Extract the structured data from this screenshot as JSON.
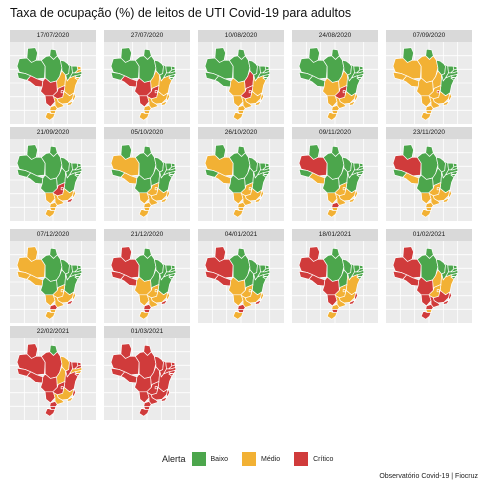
{
  "title": "Taxa de ocupação (%) de leitos de UTI Covid-19 para adultos",
  "caption": "Observatório Covid-19 | Fiocruz",
  "legend": {
    "title": "Alerta",
    "items": [
      {
        "label": "Baixo",
        "color": "#4CA64C"
      },
      {
        "label": "Médio",
        "color": "#F2B134"
      },
      {
        "label": "Crítico",
        "color": "#D03B3B"
      }
    ]
  },
  "chart_data": {
    "type": "choropleth map small multiples",
    "grid": true,
    "legend_position": "bottom",
    "alert_levels": {
      "B": "Baixo",
      "M": "Médio",
      "C": "Crítico"
    },
    "states": [
      "RR",
      "AP",
      "AM",
      "PA",
      "AC",
      "RO",
      "TO",
      "MA",
      "PI",
      "CE",
      "RN",
      "PB",
      "PE",
      "AL",
      "SE",
      "BA",
      "MT",
      "MS",
      "GO",
      "DF",
      "MG",
      "ES",
      "RJ",
      "SP",
      "PR",
      "SC",
      "RS"
    ],
    "facets": [
      {
        "date": "17/07/2020",
        "levels": [
          "B",
          "B",
          "B",
          "B",
          "B",
          "C",
          "M",
          "B",
          "B",
          "B",
          "M",
          "M",
          "B",
          "B",
          "M",
          "M",
          "C",
          "C",
          "C",
          "C",
          "M",
          "M",
          "M",
          "M",
          "M",
          "M",
          "M"
        ]
      },
      {
        "date": "27/07/2020",
        "levels": [
          "B",
          "B",
          "B",
          "B",
          "B",
          "C",
          "M",
          "B",
          "B",
          "B",
          "B",
          "B",
          "B",
          "B",
          "B",
          "M",
          "C",
          "C",
          "C",
          "C",
          "M",
          "M",
          "M",
          "M",
          "M",
          "M",
          "M"
        ]
      },
      {
        "date": "10/08/2020",
        "levels": [
          "B",
          "B",
          "B",
          "B",
          "B",
          "B",
          "C",
          "B",
          "B",
          "B",
          "B",
          "B",
          "B",
          "B",
          "B",
          "M",
          "M",
          "M",
          "C",
          "C",
          "M",
          "M",
          "M",
          "M",
          "M",
          "M",
          "M"
        ]
      },
      {
        "date": "24/08/2020",
        "levels": [
          "B",
          "B",
          "B",
          "B",
          "B",
          "B",
          "M",
          "B",
          "B",
          "B",
          "B",
          "B",
          "B",
          "B",
          "B",
          "B",
          "M",
          "M",
          "C",
          "C",
          "M",
          "M",
          "M",
          "M",
          "M",
          "M",
          "M"
        ]
      },
      {
        "date": "07/09/2020",
        "levels": [
          "B",
          "B",
          "M",
          "M",
          "M",
          "M",
          "M",
          "B",
          "B",
          "B",
          "B",
          "B",
          "B",
          "B",
          "B",
          "B",
          "M",
          "M",
          "M",
          "C",
          "M",
          "M",
          "M",
          "M",
          "M",
          "M",
          "M"
        ]
      },
      {
        "date": "21/09/2020",
        "levels": [
          "B",
          "B",
          "B",
          "B",
          "B",
          "B",
          "B",
          "B",
          "B",
          "B",
          "B",
          "B",
          "B",
          "B",
          "B",
          "B",
          "B",
          "M",
          "C",
          "C",
          "M",
          "M",
          "C",
          "M",
          "M",
          "M",
          "M"
        ]
      },
      {
        "date": "05/10/2020",
        "levels": [
          "B",
          "B",
          "M",
          "B",
          "B",
          "M",
          "B",
          "B",
          "B",
          "B",
          "B",
          "B",
          "B",
          "B",
          "B",
          "B",
          "B",
          "M",
          "M",
          "M",
          "M",
          "M",
          "M",
          "M",
          "M",
          "M",
          "M"
        ]
      },
      {
        "date": "26/10/2020",
        "levels": [
          "B",
          "B",
          "M",
          "B",
          "B",
          "M",
          "B",
          "B",
          "B",
          "B",
          "B",
          "B",
          "B",
          "B",
          "B",
          "B",
          "B",
          "M",
          "M",
          "M",
          "M",
          "M",
          "M",
          "M",
          "M",
          "M",
          "M"
        ]
      },
      {
        "date": "09/11/2020",
        "levels": [
          "B",
          "B",
          "C",
          "B",
          "B",
          "M",
          "B",
          "B",
          "B",
          "B",
          "B",
          "B",
          "B",
          "B",
          "B",
          "B",
          "B",
          "M",
          "M",
          "M",
          "M",
          "M",
          "M",
          "M",
          "C",
          "M",
          "M"
        ]
      },
      {
        "date": "23/11/2020",
        "levels": [
          "B",
          "B",
          "C",
          "B",
          "B",
          "M",
          "B",
          "B",
          "B",
          "B",
          "B",
          "B",
          "B",
          "B",
          "B",
          "B",
          "B",
          "M",
          "M",
          "M",
          "M",
          "M",
          "M",
          "M",
          "M",
          "M",
          "M"
        ]
      },
      {
        "date": "07/12/2020",
        "levels": [
          "M",
          "B",
          "M",
          "B",
          "M",
          "M",
          "B",
          "B",
          "B",
          "B",
          "B",
          "B",
          "B",
          "B",
          "B",
          "B",
          "B",
          "M",
          "M",
          "M",
          "M",
          "M",
          "C",
          "M",
          "C",
          "M",
          "M"
        ]
      },
      {
        "date": "21/12/2020",
        "levels": [
          "C",
          "B",
          "C",
          "B",
          "C",
          "C",
          "B",
          "B",
          "B",
          "B",
          "B",
          "B",
          "B",
          "B",
          "B",
          "B",
          "M",
          "M",
          "M",
          "M",
          "M",
          "M",
          "C",
          "M",
          "C",
          "C",
          "M"
        ]
      },
      {
        "date": "04/01/2021",
        "levels": [
          "C",
          "B",
          "C",
          "B",
          "C",
          "C",
          "B",
          "B",
          "B",
          "B",
          "B",
          "B",
          "B",
          "B",
          "B",
          "B",
          "M",
          "M",
          "M",
          "M",
          "M",
          "M",
          "C",
          "M",
          "C",
          "C",
          "M"
        ]
      },
      {
        "date": "18/01/2021",
        "levels": [
          "C",
          "B",
          "C",
          "B",
          "C",
          "C",
          "B",
          "B",
          "B",
          "B",
          "B",
          "B",
          "B",
          "B",
          "B",
          "M",
          "C",
          "C",
          "M",
          "M",
          "M",
          "C",
          "C",
          "M",
          "M",
          "C",
          "M"
        ]
      },
      {
        "date": "01/02/2021",
        "levels": [
          "C",
          "B",
          "C",
          "B",
          "C",
          "C",
          "M",
          "B",
          "B",
          "B",
          "B",
          "B",
          "B",
          "B",
          "B",
          "M",
          "C",
          "C",
          "M",
          "M",
          "C",
          "C",
          "C",
          "C",
          "C",
          "M",
          "C"
        ]
      },
      {
        "date": "22/02/2021",
        "levels": [
          "C",
          "B",
          "C",
          "C",
          "C",
          "C",
          "M",
          "M",
          "C",
          "C",
          "C",
          "C",
          "M",
          "M",
          "C",
          "C",
          "C",
          "C",
          "C",
          "C",
          "M",
          "C",
          "M",
          "M",
          "C",
          "C",
          "C"
        ]
      },
      {
        "date": "01/03/2021",
        "levels": [
          "C",
          "C",
          "C",
          "C",
          "C",
          "C",
          "C",
          "C",
          "C",
          "C",
          "C",
          "C",
          "C",
          "C",
          "C",
          "C",
          "C",
          "C",
          "C",
          "C",
          "C",
          "C",
          "C",
          "C",
          "C",
          "C",
          "C"
        ]
      }
    ]
  }
}
